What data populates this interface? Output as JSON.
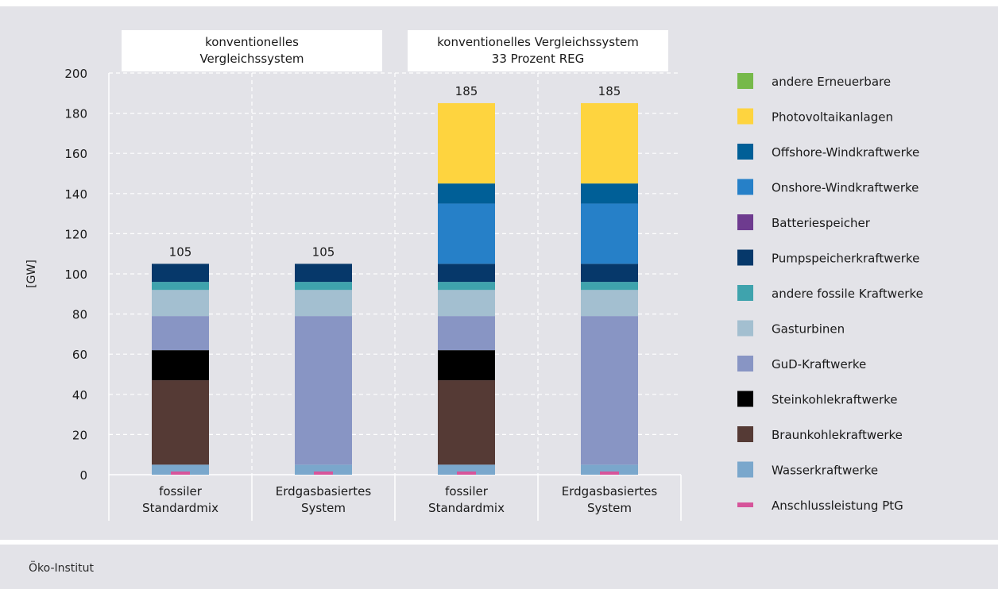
{
  "source": "Öko-Institut",
  "colors": {
    "panel_bg": "#e3e3e8",
    "grid": "#ffffff"
  },
  "chart_data": {
    "type": "bar",
    "stacked": true,
    "ylabel": "[GW]",
    "ylim": [
      0,
      200
    ],
    "yticks": [
      0,
      20,
      40,
      60,
      80,
      100,
      120,
      140,
      160,
      180,
      200
    ],
    "grid": true,
    "legend_position": "right",
    "groups": [
      {
        "label": "konventionelles Vergleichssystem",
        "lines": [
          "konventionelles",
          "Vergleichssystem"
        ]
      },
      {
        "label": "konventionelles Vergleichssystem 33 Prozent REG",
        "lines": [
          "konventionelles Vergleichssystem",
          "33 Prozent REG"
        ]
      }
    ],
    "categories": [
      {
        "lines": [
          "fossiler",
          "Standardmix"
        ],
        "group": 0
      },
      {
        "lines": [
          "Erdgasbasiertes",
          "System"
        ],
        "group": 0
      },
      {
        "lines": [
          "fossiler",
          "Standardmix"
        ],
        "group": 1
      },
      {
        "lines": [
          "Erdgasbasiertes",
          "System"
        ],
        "group": 1
      }
    ],
    "totals": [
      105,
      105,
      185,
      185
    ],
    "series": [
      {
        "name": "Wasserkraftwerke",
        "color": "#7aa7cc",
        "values": [
          5,
          5,
          5,
          5
        ]
      },
      {
        "name": "Braunkohlekraftwerke",
        "color": "#553a35",
        "values": [
          42,
          0,
          42,
          0
        ]
      },
      {
        "name": "Steinkohlekraftwerke",
        "color": "#000000",
        "values": [
          15,
          0,
          15,
          0
        ]
      },
      {
        "name": "GuD-Kraftwerke",
        "color": "#8895c4",
        "values": [
          17,
          74,
          17,
          74
        ]
      },
      {
        "name": "Gasturbinen",
        "color": "#a3bfd0",
        "values": [
          13,
          13,
          13,
          13
        ]
      },
      {
        "name": "andere fossile Kraftwerke",
        "color": "#3fa3ad",
        "values": [
          4,
          4,
          4,
          4
        ]
      },
      {
        "name": "Pumpspeicherkraftwerke",
        "color": "#06386a",
        "values": [
          9,
          9,
          9,
          9
        ]
      },
      {
        "name": "Batteriespeicher",
        "color": "#6e3b8f",
        "values": [
          0,
          0,
          0,
          0
        ]
      },
      {
        "name": "Onshore-Windkraftwerke",
        "color": "#2680c8",
        "values": [
          0,
          0,
          30,
          30
        ]
      },
      {
        "name": "Offshore-Windkraftwerke",
        "color": "#005f97",
        "values": [
          0,
          0,
          10,
          10
        ]
      },
      {
        "name": "Photovoltaikanlagen",
        "color": "#fed43f",
        "values": [
          0,
          0,
          40,
          40
        ]
      },
      {
        "name": "andere Erneuerbare",
        "color": "#76b94a",
        "values": [
          0,
          0,
          0,
          0
        ]
      }
    ],
    "ptg": {
      "name": "Anschlussleistung PtG",
      "color": "#d6549a",
      "values": [
        0,
        0,
        0,
        0
      ]
    },
    "legend_order": [
      "andere Erneuerbare",
      "Photovoltaikanlagen",
      "Offshore-Windkraftwerke",
      "Onshore-Windkraftwerke",
      "Batteriespeicher",
      "Pumpspeicherkraftwerke",
      "andere fossile Kraftwerke",
      "Gasturbinen",
      "GuD-Kraftwerke",
      "Steinkohlekraftwerke",
      "Braunkohlekraftwerke",
      "Wasserkraftwerke",
      "Anschlussleistung PtG"
    ]
  }
}
